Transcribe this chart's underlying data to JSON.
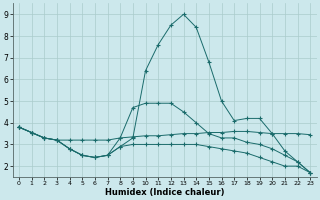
{
  "xlabel": "Humidex (Indice chaleur)",
  "bg_color": "#cce8ec",
  "grid_color": "#aacccc",
  "line_color": "#1a6b6b",
  "xlim": [
    -0.5,
    23.5
  ],
  "ylim": [
    1.5,
    9.5
  ],
  "xticks": [
    0,
    1,
    2,
    3,
    4,
    5,
    6,
    7,
    8,
    9,
    10,
    11,
    12,
    13,
    14,
    15,
    16,
    17,
    18,
    19,
    20,
    21,
    22,
    23
  ],
  "yticks": [
    2,
    3,
    4,
    5,
    6,
    7,
    8,
    9
  ],
  "line1_x": [
    0,
    1,
    2,
    3,
    4,
    5,
    6,
    7,
    8,
    9,
    10,
    11,
    12,
    13,
    14,
    15,
    16,
    17,
    18,
    19,
    20,
    21,
    22,
    23
  ],
  "line1_y": [
    3.8,
    3.55,
    3.3,
    3.2,
    3.2,
    3.2,
    3.2,
    3.2,
    3.3,
    3.35,
    3.4,
    3.4,
    3.45,
    3.5,
    3.5,
    3.55,
    3.55,
    3.6,
    3.6,
    3.55,
    3.5,
    3.5,
    3.5,
    3.45
  ],
  "line2_x": [
    0,
    1,
    2,
    3,
    4,
    5,
    6,
    7,
    8,
    9,
    10,
    11,
    12,
    13,
    14,
    15,
    16,
    17,
    18,
    19,
    20,
    21,
    22,
    23
  ],
  "line2_y": [
    3.8,
    3.55,
    3.3,
    3.2,
    2.8,
    2.5,
    2.4,
    2.5,
    2.9,
    3.3,
    6.4,
    7.6,
    8.5,
    9.0,
    8.4,
    6.8,
    5.0,
    4.1,
    4.2,
    4.2,
    3.5,
    2.7,
    2.2,
    1.7
  ],
  "line3_x": [
    0,
    1,
    2,
    3,
    4,
    5,
    6,
    7,
    8,
    9,
    10,
    11,
    12,
    13,
    14,
    15,
    16,
    17,
    18,
    19,
    20,
    21,
    22,
    23
  ],
  "line3_y": [
    3.8,
    3.55,
    3.3,
    3.2,
    2.8,
    2.5,
    2.4,
    2.5,
    3.3,
    4.7,
    4.9,
    4.9,
    4.9,
    4.5,
    4.0,
    3.5,
    3.3,
    3.3,
    3.1,
    3.0,
    2.8,
    2.5,
    2.2,
    1.7
  ],
  "line4_x": [
    0,
    1,
    2,
    3,
    4,
    5,
    6,
    7,
    8,
    9,
    10,
    11,
    12,
    13,
    14,
    15,
    16,
    17,
    18,
    19,
    20,
    21,
    22,
    23
  ],
  "line4_y": [
    3.8,
    3.55,
    3.3,
    3.2,
    2.8,
    2.5,
    2.4,
    2.5,
    2.9,
    3.0,
    3.0,
    3.0,
    3.0,
    3.0,
    3.0,
    2.9,
    2.8,
    2.7,
    2.6,
    2.4,
    2.2,
    2.0,
    2.0,
    1.7
  ]
}
